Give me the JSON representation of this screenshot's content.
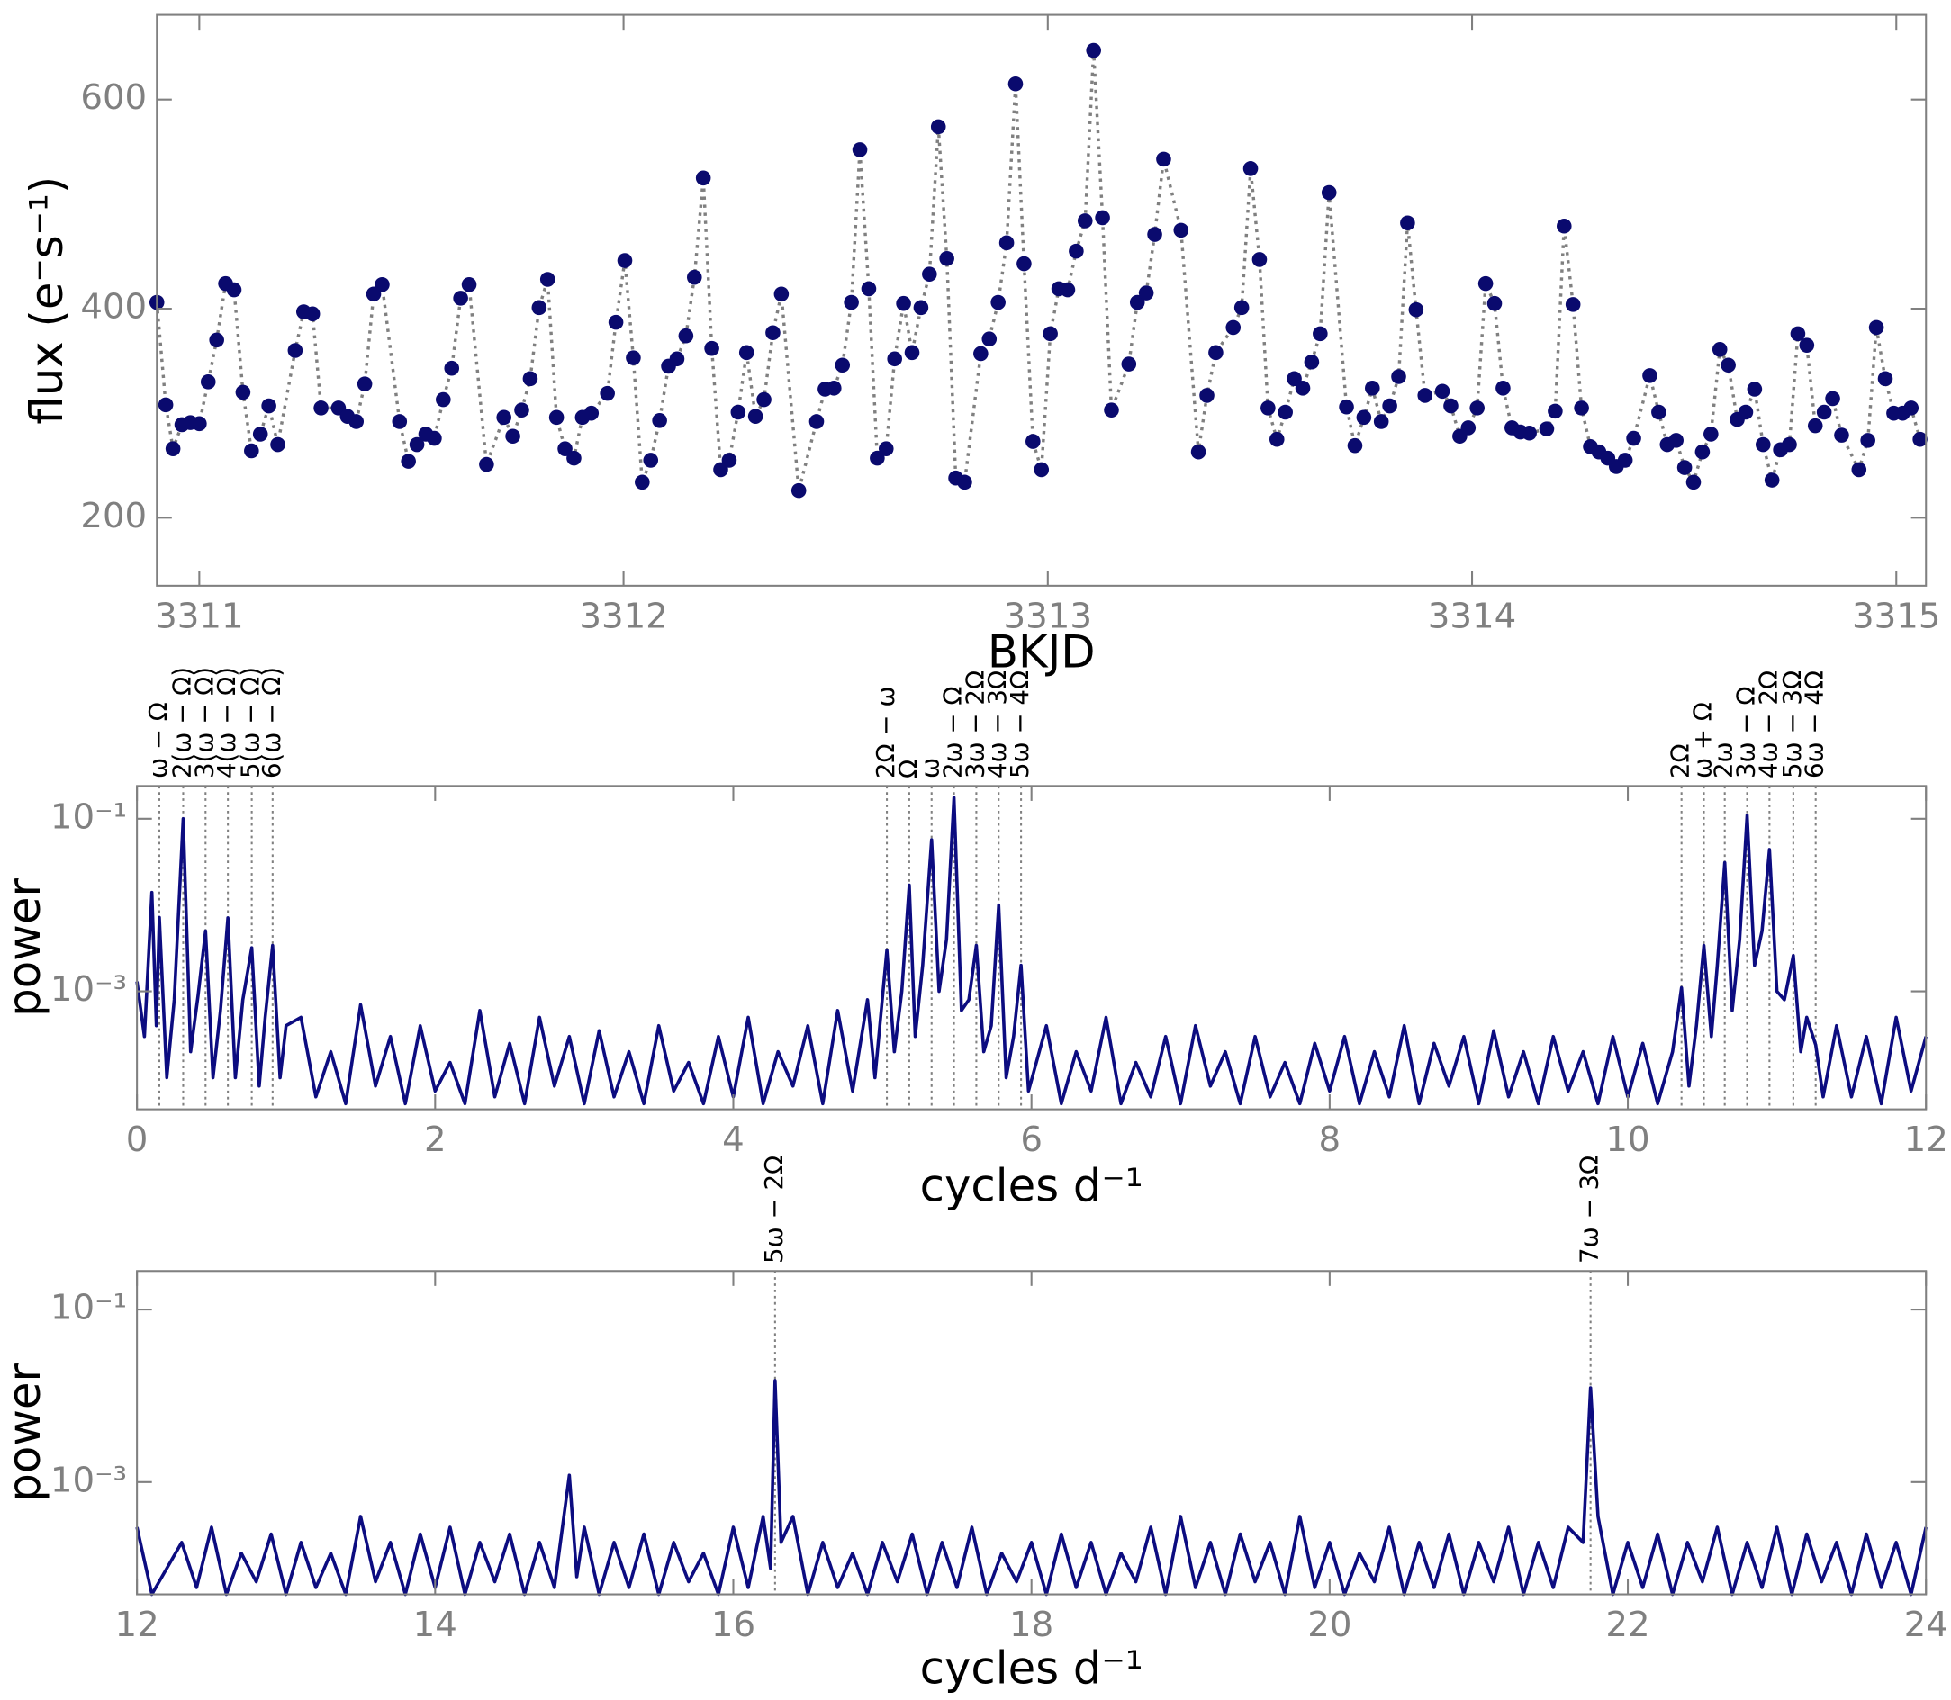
{
  "chart_data": [
    {
      "type": "line",
      "markers": true,
      "linestyle": "dotted",
      "color": "#0a0a6e",
      "line_color": "#808080",
      "xlabel": "BKJD",
      "ylabel": "flux (e⁻s⁻¹)",
      "xlim": [
        3310.9,
        3315.07
      ],
      "ylim": [
        135,
        681
      ],
      "xticks": [
        3311,
        3312,
        3313,
        3314,
        3315
      ],
      "yticks": [
        200,
        400,
        600
      ],
      "x": [
        3310.9,
        3310.921,
        3310.938,
        3310.959,
        3310.979,
        3311,
        3311.021,
        3311.041,
        3311.062,
        3311.082,
        3311.103,
        3311.123,
        3311.144,
        3311.164,
        3311.185,
        3311.226,
        3311.246,
        3311.267,
        3311.287,
        3311.328,
        3311.349,
        3311.37,
        3311.39,
        3311.411,
        3311.431,
        3311.472,
        3311.493,
        3311.513,
        3311.534,
        3311.554,
        3311.575,
        3311.595,
        3311.616,
        3311.636,
        3311.677,
        3311.718,
        3311.739,
        3311.76,
        3311.78,
        3311.801,
        3311.821,
        3311.842,
        3311.862,
        3311.883,
        3311.903,
        3311.924,
        3311.962,
        3311.982,
        3312.003,
        3312.023,
        3312.044,
        3312.064,
        3312.085,
        3312.106,
        3312.126,
        3312.147,
        3312.167,
        3312.188,
        3312.208,
        3312.229,
        3312.249,
        3312.27,
        3312.29,
        3312.311,
        3312.331,
        3312.352,
        3312.372,
        3312.413,
        3312.455,
        3312.475,
        3312.496,
        3312.516,
        3312.537,
        3312.557,
        3312.578,
        3312.598,
        3312.619,
        3312.639,
        3312.66,
        3312.68,
        3312.701,
        3312.721,
        3312.742,
        3312.762,
        3312.783,
        3312.804,
        3312.842,
        3312.862,
        3312.883,
        3312.903,
        3312.924,
        3312.944,
        3312.965,
        3312.985,
        3313.006,
        3313.026,
        3313.047,
        3313.067,
        3313.088,
        3313.108,
        3313.129,
        3313.15,
        3313.191,
        3313.211,
        3313.232,
        3313.252,
        3313.273,
        3313.314,
        3313.355,
        3313.375,
        3313.396,
        3313.437,
        3313.457,
        3313.478,
        3313.499,
        3313.519,
        3313.54,
        3313.56,
        3313.581,
        3313.601,
        3313.622,
        3313.642,
        3313.663,
        3313.704,
        3313.724,
        3313.745,
        3313.765,
        3313.786,
        3313.806,
        3313.827,
        3313.848,
        3313.868,
        3313.889,
        3313.93,
        3313.95,
        3313.971,
        3313.991,
        3314.012,
        3314.032,
        3314.053,
        3314.073,
        3314.094,
        3314.114,
        3314.135,
        3314.176,
        3314.196,
        3314.217,
        3314.238,
        3314.258,
        3314.279,
        3314.299,
        3314.32,
        3314.34,
        3314.361,
        3314.381,
        3314.419,
        3314.44,
        3314.46,
        3314.481,
        3314.501,
        3314.522,
        3314.543,
        3314.563,
        3314.584,
        3314.604,
        3314.625,
        3314.645,
        3314.666,
        3314.686,
        3314.707,
        3314.727,
        3314.748,
        3314.768,
        3314.789,
        3314.809,
        3314.83,
        3314.85,
        3314.871,
        3314.912,
        3314.933,
        3314.953,
        3314.974,
        3314.994,
        3315.015,
        3315.035,
        3315.056
      ],
      "values": [
        406,
        308,
        266,
        289,
        291,
        290,
        330,
        370,
        424,
        418,
        320,
        264,
        280,
        307,
        270,
        360,
        397,
        395,
        305,
        305,
        297,
        292,
        328,
        414,
        423,
        292,
        254,
        270,
        280,
        276,
        313,
        343,
        410,
        423,
        251,
        296,
        278,
        303,
        333,
        401,
        428,
        296,
        266,
        257,
        296,
        300,
        319,
        387,
        446,
        353,
        234,
        255,
        293,
        345,
        352,
        374,
        430,
        525,
        362,
        246,
        255,
        301,
        358,
        297,
        313,
        377,
        414,
        226,
        292,
        323,
        324,
        346,
        406,
        552,
        419,
        257,
        266,
        352,
        405,
        358,
        401,
        433,
        574,
        448,
        238,
        234,
        357,
        371,
        406,
        463,
        615,
        443,
        273,
        246,
        376,
        419,
        418,
        455,
        484,
        647,
        487,
        303,
        347,
        406,
        415,
        471,
        543,
        475,
        263,
        317,
        358,
        382,
        401,
        534,
        447,
        305,
        275,
        301,
        333,
        324,
        349,
        376,
        511,
        306,
        269,
        296,
        324,
        292,
        307,
        335,
        482,
        399,
        317,
        321,
        307,
        278,
        286,
        305,
        424,
        405,
        324,
        286,
        282,
        281,
        285,
        302,
        479,
        404,
        305,
        268,
        263,
        257,
        249,
        255,
        276,
        336,
        301,
        270,
        274,
        248,
        234,
        263,
        280,
        361,
        346,
        294,
        301,
        323,
        270,
        236,
        265,
        270,
        376,
        365,
        288,
        301,
        314,
        279,
        246,
        274,
        382,
        333,
        300,
        300,
        305,
        275
      ]
    },
    {
      "type": "line",
      "markers": false,
      "color": "#0c0c80",
      "yscale": "log",
      "annotation_color": "#808080",
      "xlabel": "cycles d⁻¹",
      "ylabel": "power",
      "xlim": [
        0,
        12
      ],
      "ylim": [
        4.3e-05,
        0.24
      ],
      "xticks": [
        0,
        2,
        4,
        6,
        8,
        10,
        12
      ],
      "yticks": [
        {
          "value": 0.1,
          "label": "10⁻¹"
        },
        {
          "value": 0.001,
          "label": "10⁻³"
        }
      ],
      "annotations": [
        {
          "x": 0.15,
          "label": "ω − Ω"
        },
        {
          "x": 0.31,
          "label": "2(ω − Ω)"
        },
        {
          "x": 0.46,
          "label": "3(ω − Ω)"
        },
        {
          "x": 0.61,
          "label": "4(ω − Ω)"
        },
        {
          "x": 0.77,
          "label": "5(ω − Ω)"
        },
        {
          "x": 0.91,
          "label": "6(ω − Ω)"
        },
        {
          "x": 5.03,
          "label": "2Ω − ω"
        },
        {
          "x": 5.18,
          "label": "Ω"
        },
        {
          "x": 5.33,
          "label": "ω"
        },
        {
          "x": 5.48,
          "label": "2ω − Ω"
        },
        {
          "x": 5.63,
          "label": "3ω − 2Ω"
        },
        {
          "x": 5.78,
          "label": "4ω − 3Ω"
        },
        {
          "x": 5.93,
          "label": "5ω − 4Ω"
        },
        {
          "x": 10.36,
          "label": "2Ω"
        },
        {
          "x": 10.51,
          "label": "ω + Ω"
        },
        {
          "x": 10.65,
          "label": "2ω"
        },
        {
          "x": 10.8,
          "label": "3ω − Ω"
        },
        {
          "x": 10.95,
          "label": "4ω − 2Ω"
        },
        {
          "x": 11.11,
          "label": "5ω − 3Ω"
        },
        {
          "x": 11.26,
          "label": "6ω − 4Ω"
        }
      ],
      "x": [
        0,
        0.05,
        0.1,
        0.13,
        0.15,
        0.2,
        0.25,
        0.31,
        0.36,
        0.41,
        0.46,
        0.51,
        0.56,
        0.61,
        0.66,
        0.71,
        0.77,
        0.82,
        0.86,
        0.91,
        0.96,
        1,
        1.1,
        1.2,
        1.3,
        1.4,
        1.5,
        1.6,
        1.7,
        1.8,
        1.9,
        2,
        2.1,
        2.2,
        2.3,
        2.4,
        2.5,
        2.6,
        2.7,
        2.8,
        2.9,
        3,
        3.1,
        3.2,
        3.3,
        3.4,
        3.5,
        3.6,
        3.7,
        3.8,
        3.9,
        4,
        4.1,
        4.2,
        4.3,
        4.4,
        4.5,
        4.6,
        4.7,
        4.8,
        4.9,
        4.95,
        5.03,
        5.08,
        5.13,
        5.18,
        5.22,
        5.27,
        5.33,
        5.38,
        5.43,
        5.48,
        5.53,
        5.58,
        5.63,
        5.68,
        5.73,
        5.78,
        5.83,
        5.88,
        5.93,
        5.98,
        6.1,
        6.2,
        6.3,
        6.4,
        6.5,
        6.6,
        6.7,
        6.8,
        6.9,
        7,
        7.1,
        7.2,
        7.3,
        7.4,
        7.5,
        7.6,
        7.7,
        7.8,
        7.9,
        8,
        8.1,
        8.2,
        8.3,
        8.4,
        8.5,
        8.6,
        8.7,
        8.8,
        8.9,
        9,
        9.1,
        9.2,
        9.3,
        9.4,
        9.5,
        9.6,
        9.7,
        9.8,
        9.9,
        10,
        10.1,
        10.2,
        10.3,
        10.36,
        10.41,
        10.46,
        10.51,
        10.56,
        10.6,
        10.65,
        10.7,
        10.75,
        10.8,
        10.85,
        10.9,
        10.95,
        11,
        11.05,
        11.11,
        11.16,
        11.2,
        11.26,
        11.31,
        11.4,
        11.5,
        11.6,
        11.7,
        11.8,
        11.9,
        12
      ],
      "values": [
        0.0013,
        0.0003,
        0.014,
        0.0004,
        0.0072,
        0.0001,
        0.0008,
        0.1,
        0.0002,
        0.0009,
        0.005,
        0.0001,
        0.0006,
        0.0071,
        0.0001,
        0.0008,
        0.0032,
        8e-05,
        0.0005,
        0.0034,
        0.0001,
        0.0004,
        0.0005,
        6e-05,
        0.0002,
        5e-05,
        0.0007,
        8e-05,
        0.0003,
        5e-05,
        0.0004,
        7e-05,
        0.00015,
        5e-05,
        0.0006,
        6e-05,
        0.00025,
        5e-05,
        0.0005,
        8e-05,
        0.0003,
        5e-05,
        0.00035,
        6e-05,
        0.0002,
        5e-05,
        0.0004,
        7e-05,
        0.00015,
        5e-05,
        0.0003,
        6e-05,
        0.0005,
        5e-05,
        0.0002,
        8e-05,
        0.0004,
        5e-05,
        0.0006,
        7e-05,
        0.0008,
        0.0001,
        0.003,
        0.0002,
        0.001,
        0.017,
        0.0003,
        0.002,
        0.057,
        0.001,
        0.004,
        0.176,
        0.0006,
        0.0008,
        0.0034,
        0.0002,
        0.0004,
        0.01,
        0.0001,
        0.0003,
        0.002,
        7e-05,
        0.0004,
        5e-05,
        0.0002,
        7e-05,
        0.0005,
        5e-05,
        0.00015,
        6e-05,
        0.0003,
        5e-05,
        0.0004,
        8e-05,
        0.0002,
        5e-05,
        0.0003,
        6e-05,
        0.00015,
        5e-05,
        0.00025,
        7e-05,
        0.0003,
        5e-05,
        0.0002,
        6e-05,
        0.0004,
        5e-05,
        0.00025,
        8e-05,
        0.0003,
        5e-05,
        0.00035,
        6e-05,
        0.0002,
        5e-05,
        0.0003,
        7e-05,
        0.0002,
        5e-05,
        0.0003,
        6e-05,
        0.00025,
        5e-05,
        0.0002,
        0.0011,
        8e-05,
        0.0004,
        0.0034,
        0.0003,
        0.002,
        0.031,
        0.0006,
        0.004,
        0.11,
        0.002,
        0.005,
        0.044,
        0.001,
        0.0008,
        0.0026,
        0.0002,
        0.0005,
        0.00024,
        6e-05,
        0.0004,
        6e-05,
        0.0003,
        5e-05,
        0.0005,
        7e-05,
        0.0003
      ]
    },
    {
      "type": "line",
      "markers": false,
      "color": "#0c0c80",
      "yscale": "log",
      "annotation_color": "#808080",
      "xlabel": "cycles d⁻¹",
      "ylabel": "power",
      "xlim": [
        12,
        24
      ],
      "ylim": [
        5e-05,
        0.28
      ],
      "xticks": [
        12,
        14,
        16,
        18,
        20,
        22,
        24
      ],
      "yticks": [
        {
          "value": 0.1,
          "label": "10⁻¹"
        },
        {
          "value": 0.001,
          "label": "10⁻³"
        }
      ],
      "annotations": [
        {
          "x": 16.28,
          "label": "5ω − 2Ω"
        },
        {
          "x": 21.75,
          "label": "7ω − 3Ω"
        }
      ],
      "x": [
        12,
        12.1,
        12.3,
        12.4,
        12.5,
        12.6,
        12.7,
        12.8,
        12.9,
        13,
        13.1,
        13.2,
        13.3,
        13.4,
        13.5,
        13.6,
        13.7,
        13.8,
        13.9,
        14,
        14.1,
        14.2,
        14.3,
        14.4,
        14.5,
        14.6,
        14.7,
        14.8,
        14.9,
        14.95,
        15,
        15.1,
        15.2,
        15.3,
        15.4,
        15.5,
        15.6,
        15.7,
        15.8,
        15.9,
        16,
        16.1,
        16.2,
        16.25,
        16.28,
        16.32,
        16.4,
        16.5,
        16.6,
        16.7,
        16.8,
        16.9,
        17,
        17.1,
        17.2,
        17.3,
        17.4,
        17.5,
        17.6,
        17.7,
        17.8,
        17.9,
        18,
        18.1,
        18.2,
        18.3,
        18.4,
        18.5,
        18.6,
        18.7,
        18.8,
        18.9,
        19,
        19.1,
        19.2,
        19.3,
        19.4,
        19.5,
        19.6,
        19.7,
        19.8,
        19.9,
        20,
        20.1,
        20.2,
        20.3,
        20.4,
        20.5,
        20.6,
        20.7,
        20.8,
        20.9,
        21,
        21.1,
        21.2,
        21.3,
        21.4,
        21.5,
        21.6,
        21.7,
        21.75,
        21.8,
        21.9,
        22,
        22.1,
        22.2,
        22.3,
        22.4,
        22.5,
        22.6,
        22.7,
        22.8,
        22.9,
        23,
        23.1,
        23.2,
        23.3,
        23.4,
        23.5,
        23.6,
        23.7,
        23.8,
        23.9,
        24
      ],
      "values": [
        0.0003,
        5e-05,
        0.0002,
        6e-05,
        0.0003,
        5e-05,
        0.00015,
        7e-05,
        0.00025,
        5e-05,
        0.0002,
        6e-05,
        0.00015,
        5e-05,
        0.0004,
        7e-05,
        0.0002,
        5e-05,
        0.00025,
        6e-05,
        0.0003,
        5e-05,
        0.0002,
        7e-05,
        0.00025,
        5e-05,
        0.0002,
        6e-05,
        0.0012,
        8e-05,
        0.0003,
        5e-05,
        0.0002,
        6e-05,
        0.00025,
        5e-05,
        0.0002,
        7e-05,
        0.00015,
        5e-05,
        0.0003,
        6e-05,
        0.0004,
        0.0001,
        0.015,
        0.0002,
        0.0004,
        5e-05,
        0.0002,
        6e-05,
        0.00015,
        5e-05,
        0.0002,
        7e-05,
        0.00025,
        5e-05,
        0.0002,
        6e-05,
        0.0003,
        5e-05,
        0.00015,
        7e-05,
        0.0002,
        5e-05,
        0.00025,
        6e-05,
        0.0002,
        5e-05,
        0.00015,
        7e-05,
        0.0003,
        5e-05,
        0.0004,
        6e-05,
        0.0002,
        5e-05,
        0.00025,
        7e-05,
        0.0002,
        5e-05,
        0.0004,
        6e-05,
        0.0002,
        5e-05,
        0.00015,
        7e-05,
        0.0003,
        5e-05,
        0.0002,
        6e-05,
        0.00025,
        5e-05,
        0.0002,
        7e-05,
        0.0003,
        5e-05,
        0.0002,
        6e-05,
        0.0003,
        0.0002,
        0.0124,
        0.0004,
        5e-05,
        0.0002,
        6e-05,
        0.00025,
        5e-05,
        0.0002,
        7e-05,
        0.0003,
        5e-05,
        0.0002,
        6e-05,
        0.0003,
        5e-05,
        0.00025,
        7e-05,
        0.0002,
        5e-05,
        0.00025,
        6e-05,
        0.0002,
        5e-05,
        0.0003
      ]
    }
  ]
}
